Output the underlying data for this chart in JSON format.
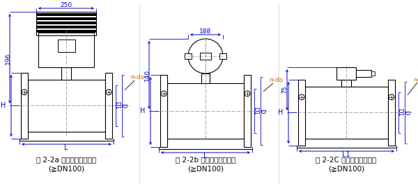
{
  "bg_color": "#ffffff",
  "line_color": "#000000",
  "dim_color": "#0000cd",
  "orange_color": "#cc6600",
  "fig_labels": [
    "图 2-2a 一体型电磁流量计",
    "图 2-2b 一体型电磁流量计",
    "图 2-2C 分离型电磁流量计"
  ],
  "fig_sublabels": [
    "(≧DN100)",
    "(≧DN100)",
    "(≧DN100)"
  ],
  "dim_250": "250",
  "dim_196": "196",
  "dim_188": "188",
  "dim_140": "140",
  "dim_75": "75",
  "label_H": "H",
  "label_L": "L",
  "label_L1": "L1",
  "label_D1": "D1",
  "label_D": "D",
  "label_ndo": "n-do"
}
